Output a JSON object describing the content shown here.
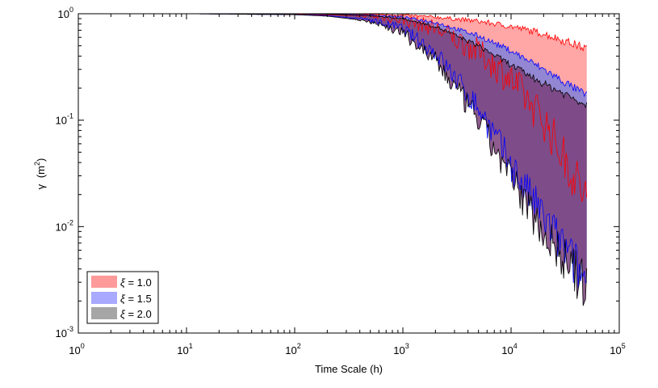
{
  "chart_data": {
    "type": "area",
    "xlabel": "Time Scale (h)",
    "ylabel_symbol": "γ",
    "ylabel_unit": "(m",
    "ylabel_unit_exp": "2",
    "ylabel_unit_close": ")",
    "xscale": "log",
    "yscale": "log",
    "xlim": [
      1,
      100000
    ],
    "ylim": [
      0.001,
      1
    ],
    "x_ticks": [
      {
        "base": "10",
        "exp": "0",
        "value": 1
      },
      {
        "base": "10",
        "exp": "1",
        "value": 10
      },
      {
        "base": "10",
        "exp": "2",
        "value": 100
      },
      {
        "base": "10",
        "exp": "3",
        "value": 1000
      },
      {
        "base": "10",
        "exp": "4",
        "value": 10000
      },
      {
        "base": "10",
        "exp": "5",
        "value": 100000
      }
    ],
    "y_ticks": [
      {
        "base": "10",
        "exp": "0",
        "value": 1
      },
      {
        "base": "10",
        "exp": "-1",
        "value": 0.1
      },
      {
        "base": "10",
        "exp": "-2",
        "value": 0.01
      },
      {
        "base": "10",
        "exp": "-3",
        "value": 0.001
      }
    ],
    "grid": false,
    "legend_position": "bottom-left",
    "x": [
      1,
      10,
      100,
      200,
      500,
      1000,
      2000,
      5000,
      10000,
      20000,
      50000
    ],
    "series": [
      {
        "name_symbol": "ξ",
        "name_value": "= 1.0",
        "color": "#ff0000",
        "fill": "#ffa6a6",
        "upper": [
          1,
          1,
          1,
          1,
          0.99,
          0.97,
          0.93,
          0.85,
          0.76,
          0.65,
          0.47
        ],
        "lower": [
          1,
          1,
          0.99,
          0.98,
          0.95,
          0.88,
          0.73,
          0.44,
          0.24,
          0.1,
          0.018
        ]
      },
      {
        "name_symbol": "ξ",
        "name_value": "= 1.5",
        "color": "#0000ff",
        "fill": "#8080d9",
        "upper": [
          1,
          1,
          1,
          0.99,
          0.97,
          0.93,
          0.83,
          0.62,
          0.45,
          0.3,
          0.17
        ],
        "lower": [
          1,
          1,
          0.98,
          0.96,
          0.88,
          0.72,
          0.43,
          0.13,
          0.038,
          0.012,
          0.003
        ]
      },
      {
        "name_symbol": "ξ",
        "name_value": "= 2.0",
        "color": "#000000",
        "fill": "#7a3f7a",
        "upper": [
          1,
          1,
          1,
          0.99,
          0.96,
          0.9,
          0.76,
          0.5,
          0.33,
          0.22,
          0.14
        ],
        "lower": [
          1,
          1,
          0.98,
          0.95,
          0.85,
          0.66,
          0.36,
          0.1,
          0.028,
          0.009,
          0.0026
        ]
      }
    ],
    "legend_swatches": [
      "#ff9a9a",
      "#a9a9ff",
      "#a6a6a6"
    ]
  }
}
